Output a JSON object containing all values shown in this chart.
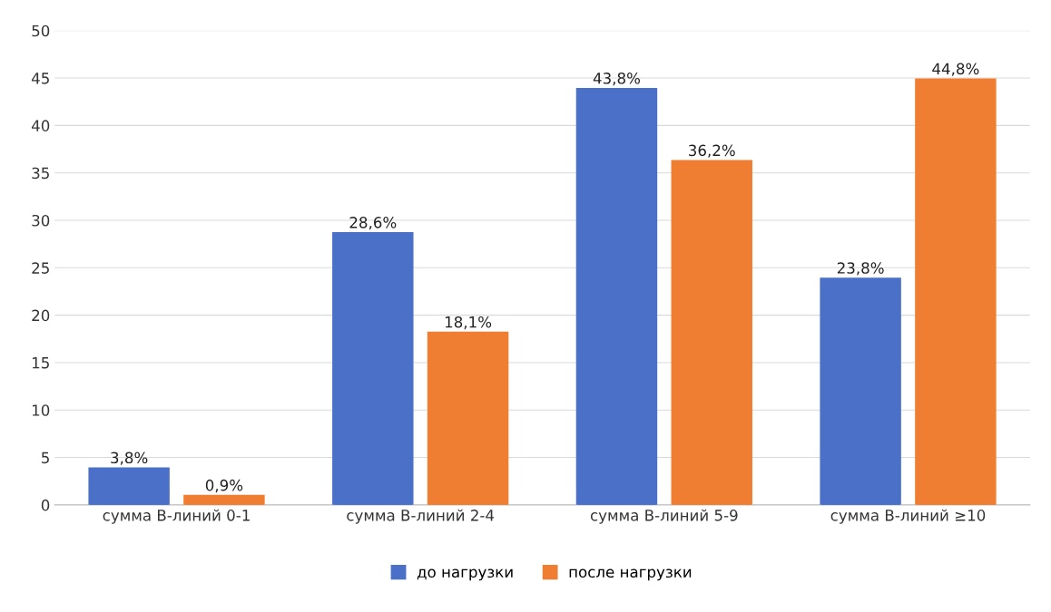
{
  "chart_data": {
    "type": "bar",
    "categories": [
      "сумма B-линий 0-1",
      "сумма B-линий 2-4",
      "сумма B-линий 5-9",
      "сумма B-линий ≥10"
    ],
    "series": [
      {
        "name": "до нагрузки",
        "color": "#4a70c8",
        "values": [
          3.8,
          28.6,
          43.8,
          23.8
        ],
        "value_labels": [
          "3,8%",
          "28,6%",
          "43,8%",
          "23,8%"
        ]
      },
      {
        "name": "после нагрузки",
        "color": "#f07e32",
        "values": [
          0.9,
          18.1,
          36.2,
          44.8
        ],
        "value_labels": [
          "0,9%",
          "18,1%",
          "36,2%",
          "44,8%"
        ]
      }
    ],
    "ylim": [
      0,
      50
    ],
    "yticks": [
      0,
      5,
      10,
      15,
      20,
      25,
      30,
      35,
      40,
      45,
      50
    ],
    "grid": "y",
    "legend": "bottom"
  }
}
